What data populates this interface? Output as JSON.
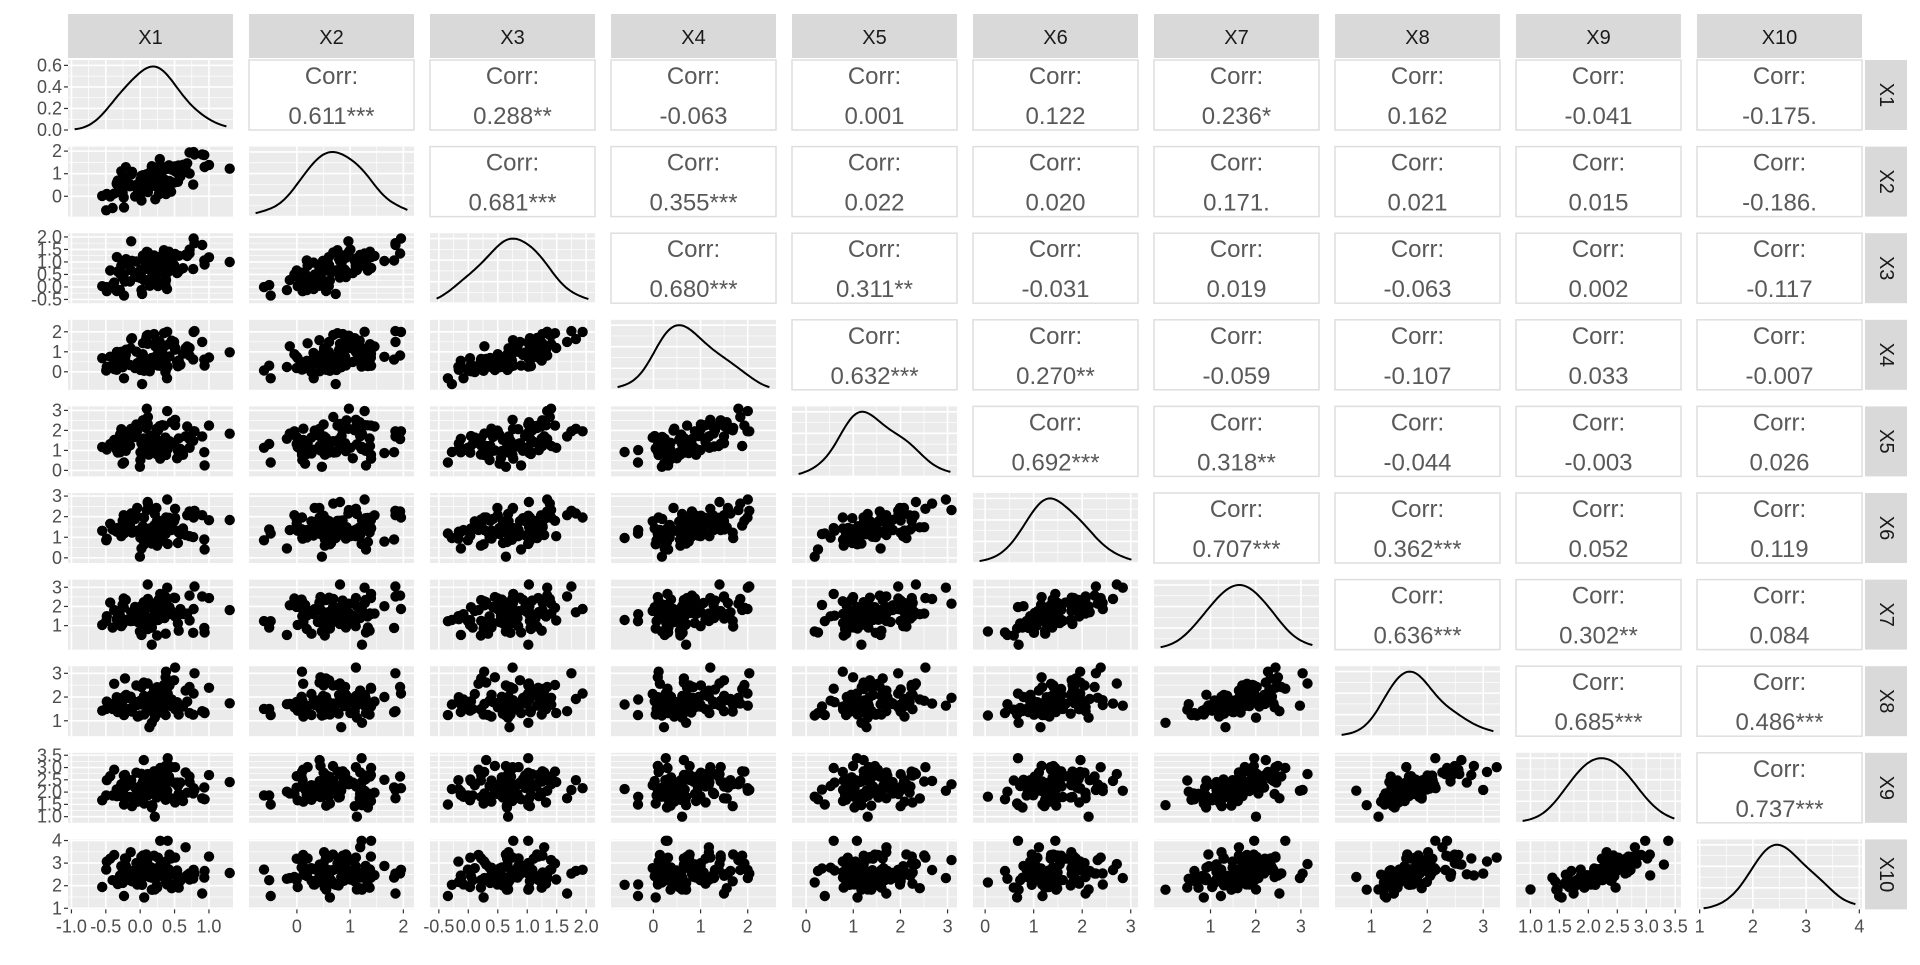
{
  "chart_data": {
    "type": "scatter",
    "title": "",
    "variables": [
      "X1",
      "X2",
      "X3",
      "X4",
      "X5",
      "X6",
      "X7",
      "X8",
      "X9",
      "X10"
    ],
    "corr_label": "Corr:",
    "correlations": {
      "X1": {
        "X2": "0.611***",
        "X3": "0.288**",
        "X4": "-0.063",
        "X5": "0.001",
        "X6": "0.122",
        "X7": "0.236*",
        "X8": "0.162",
        "X9": "-0.041",
        "X10": "-0.175."
      },
      "X2": {
        "X3": "0.681***",
        "X4": "0.355***",
        "X5": "0.022",
        "X6": "0.020",
        "X7": "0.171.",
        "X8": "0.021",
        "X9": "0.015",
        "X10": "-0.186."
      },
      "X3": {
        "X4": "0.680***",
        "X5": "0.311**",
        "X6": "-0.031",
        "X7": "0.019",
        "X8": "-0.063",
        "X9": "0.002",
        "X10": "-0.117"
      },
      "X4": {
        "X5": "0.632***",
        "X6": "0.270**",
        "X7": "-0.059",
        "X8": "-0.107",
        "X9": "0.033",
        "X10": "-0.007"
      },
      "X5": {
        "X6": "0.692***",
        "X7": "0.318**",
        "X8": "-0.044",
        "X9": "-0.003",
        "X10": "0.026"
      },
      "X6": {
        "X7": "0.707***",
        "X8": "0.362***",
        "X9": "0.052",
        "X10": "0.119"
      },
      "X7": {
        "X8": "0.636***",
        "X9": "0.302**",
        "X10": "0.084"
      },
      "X8": {
        "X9": "0.685***",
        "X10": "0.486***"
      },
      "X9": {
        "X10": "0.737***"
      }
    },
    "ranges": {
      "X1": [
        -1.05,
        1.35
      ],
      "X2": [
        -0.9,
        2.2
      ],
      "X3": [
        -0.65,
        2.15
      ],
      "X4": [
        -0.9,
        2.6
      ],
      "X5": [
        -0.3,
        3.2
      ],
      "X6": [
        -0.25,
        3.15
      ],
      "X7": [
        -0.25,
        3.4
      ],
      "X8": [
        0.35,
        3.3
      ],
      "X9": [
        0.75,
        3.6
      ],
      "X10": [
        0.95,
        4.05
      ]
    },
    "x_ticks": {
      "X1": [
        -1.0,
        -0.5,
        0.0,
        0.5,
        1.0
      ],
      "X2": [
        0,
        1,
        2
      ],
      "X3": [
        -0.5,
        0.0,
        0.5,
        1.0,
        1.5,
        2.0
      ],
      "X4": [
        0,
        1,
        2
      ],
      "X5": [
        0,
        1,
        2,
        3
      ],
      "X6": [
        0,
        1,
        2,
        3
      ],
      "X7": [
        1,
        2,
        3
      ],
      "X8": [
        1,
        2,
        3
      ],
      "X9": [
        1.0,
        1.5,
        2.0,
        2.5,
        3.0,
        3.5
      ],
      "X10": [
        1,
        2,
        3,
        4
      ]
    },
    "x_tick_labels": {
      "X1": [
        "-1.0",
        "-0.5",
        "0.0",
        "0.5",
        "1.0"
      ],
      "X2": [
        "0",
        "1",
        "2"
      ],
      "X3": [
        "-0.5",
        "0.0",
        "0.5",
        "1.0",
        "1.5",
        "2.0"
      ],
      "X4": [
        "0",
        "1",
        "2"
      ],
      "X5": [
        "0",
        "1",
        "2",
        "3"
      ],
      "X6": [
        "0",
        "1",
        "2",
        "3"
      ],
      "X7": [
        "1",
        "2",
        "3"
      ],
      "X8": [
        "1",
        "2",
        "3"
      ],
      "X9": [
        "1.0",
        "1.5",
        "2.0",
        "2.5",
        "3.0",
        "3.5"
      ],
      "X10": [
        "1",
        "2",
        "3",
        "4"
      ]
    },
    "density_y_ticks": [
      0.0,
      0.2,
      0.4,
      0.6
    ],
    "density_y_tick_labels": [
      "0.0",
      "0.2",
      "0.4",
      "0.6"
    ],
    "density_y_range": [
      0,
      0.65
    ],
    "y_ticks": {
      "X2": [
        0,
        1,
        2
      ],
      "X3": [
        -0.5,
        0.0,
        0.5,
        1.0,
        1.5,
        2.0
      ],
      "X4": [
        0,
        1,
        2
      ],
      "X5": [
        0,
        1,
        2,
        3
      ],
      "X6": [
        0,
        1,
        2,
        3
      ],
      "X7": [
        1,
        2,
        3
      ],
      "X8": [
        1,
        2,
        3
      ],
      "X9": [
        1.0,
        1.5,
        2.0,
        2.5,
        3.0,
        3.5
      ],
      "X10": [
        1,
        2,
        3,
        4
      ]
    },
    "y_tick_labels": {
      "X2": [
        "0",
        "1",
        "2"
      ],
      "X3": [
        "-0.5",
        "0.0",
        "0.5",
        "1.0",
        "1.5",
        "2.0"
      ],
      "X4": [
        "0",
        "1",
        "2"
      ],
      "X5": [
        "0",
        "1",
        "2",
        "3"
      ],
      "X6": [
        "0",
        "1",
        "2",
        "3"
      ],
      "X7": [
        "1",
        "2",
        "3"
      ],
      "X8": [
        "1",
        "2",
        "3"
      ],
      "X9": [
        "1.0",
        "1.5",
        "2.0",
        "2.5",
        "3.0",
        "3.5"
      ],
      "X10": [
        "1",
        "2",
        "3",
        "4"
      ]
    },
    "grid": true,
    "colors": {
      "panel_background": "#ebebeb",
      "grid_line": "#ffffff",
      "strip_background": "#d9d9d9",
      "point": "#000000",
      "corr_text": "#595959",
      "corr_panel_border": "#dedede",
      "axis_text": "#4d4d4d"
    }
  }
}
